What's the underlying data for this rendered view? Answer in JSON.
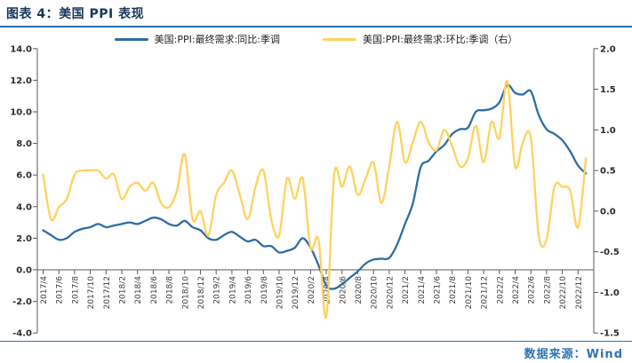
{
  "header": {
    "title": "图表 4：美国 PPI 表现"
  },
  "footer": {
    "source_label": "数据来源：Wind"
  },
  "colors": {
    "title_navy": "#17365D",
    "rule_blue": "#2C6BAE",
    "source_blue": "#2E74B5",
    "axis_gray": "#595959",
    "line_yoy_blue": "#2E6DA4",
    "line_mom_yellow": "#FFD25F"
  },
  "chart_data": {
    "type": "line",
    "title": "",
    "x": [
      "2017/4",
      "2017/5",
      "2017/6",
      "2017/7",
      "2017/8",
      "2017/9",
      "2017/10",
      "2017/11",
      "2017/12",
      "2018/1",
      "2018/2",
      "2018/3",
      "2018/4",
      "2018/5",
      "2018/6",
      "2018/7",
      "2018/8",
      "2018/9",
      "2018/10",
      "2018/11",
      "2018/12",
      "2019/1",
      "2019/2",
      "2019/3",
      "2019/4",
      "2019/5",
      "2019/6",
      "2019/7",
      "2019/8",
      "2019/9",
      "2019/10",
      "2019/11",
      "2019/12",
      "2020/1",
      "2020/2",
      "2020/3",
      "2020/4",
      "2020/5",
      "2020/6",
      "2020/7",
      "2020/8",
      "2020/9",
      "2020/10",
      "2020/11",
      "2020/12",
      "2021/1",
      "2021/2",
      "2021/3",
      "2021/4",
      "2021/5",
      "2021/6",
      "2021/7",
      "2021/8",
      "2021/9",
      "2021/10",
      "2021/11",
      "2021/12",
      "2022/1",
      "2022/2",
      "2022/3",
      "2022/4",
      "2022/5",
      "2022/6",
      "2022/7",
      "2022/8",
      "2022/9",
      "2022/10",
      "2022/11",
      "2022/12",
      "2023/1"
    ],
    "x_tick_labels": [
      "2017/4",
      "2017/6",
      "2017/8",
      "2017/10",
      "2017/12",
      "2018/2",
      "2018/4",
      "2018/6",
      "2018/8",
      "2018/10",
      "2018/12",
      "2019/2",
      "2019/4",
      "2019/6",
      "2019/8",
      "2019/10",
      "2019/12",
      "2020/2",
      "2020/4",
      "2020/6",
      "2020/8",
      "2020/10",
      "2020/12",
      "2021/2",
      "2021/4",
      "2021/6",
      "2021/8",
      "2021/10",
      "2021/12",
      "2022/2",
      "2022/4",
      "2022/6",
      "2022/8",
      "2022/10",
      "2022/12"
    ],
    "series": [
      {
        "name": "美国:PPI:最终需求:同比:季调",
        "axis": "left",
        "color": "#2E6DA4",
        "values": [
          2.5,
          2.2,
          1.9,
          2.0,
          2.4,
          2.6,
          2.7,
          2.9,
          2.7,
          2.8,
          2.9,
          3.0,
          2.9,
          3.1,
          3.3,
          3.2,
          2.9,
          2.8,
          3.1,
          2.7,
          2.5,
          2.0,
          1.9,
          2.2,
          2.4,
          2.1,
          1.8,
          1.9,
          1.5,
          1.5,
          1.1,
          1.2,
          1.4,
          2.0,
          1.4,
          0.3,
          -1.0,
          -1.2,
          -0.9,
          -0.5,
          -0.1,
          0.4,
          0.65,
          0.7,
          0.75,
          1.6,
          2.9,
          4.2,
          6.5,
          6.9,
          7.5,
          7.9,
          8.6,
          8.9,
          9.0,
          10.0,
          10.1,
          10.2,
          10.6,
          11.7,
          11.2,
          11.1,
          11.3,
          9.8,
          8.9,
          8.6,
          8.2,
          7.5,
          6.6,
          6.1
        ]
      },
      {
        "name": "美国:PPI:最终需求:环比:季调（右）",
        "axis": "right",
        "color": "#FFD25F",
        "values": [
          0.45,
          -0.1,
          0.05,
          0.15,
          0.45,
          0.5,
          0.5,
          0.5,
          0.4,
          0.45,
          0.15,
          0.3,
          0.35,
          0.25,
          0.35,
          0.1,
          0.05,
          0.25,
          0.7,
          -0.1,
          0.0,
          -0.3,
          0.2,
          0.35,
          0.5,
          0.2,
          -0.1,
          0.3,
          0.5,
          -0.1,
          -0.3,
          0.4,
          0.15,
          0.4,
          -0.45,
          -0.35,
          -1.3,
          0.45,
          0.3,
          0.55,
          0.2,
          0.4,
          0.6,
          0.1,
          0.55,
          1.1,
          0.6,
          0.85,
          1.1,
          0.85,
          0.75,
          1.0,
          0.8,
          0.55,
          0.65,
          1.05,
          0.6,
          1.1,
          0.9,
          1.6,
          0.55,
          0.85,
          0.9,
          -0.3,
          -0.35,
          0.3,
          0.3,
          0.25,
          -0.2,
          0.65
        ]
      }
    ],
    "left_axis": {
      "min": -4.0,
      "max": 14.0,
      "step": 2.0,
      "tick_labels": [
        "14.0",
        "12.0",
        "10.0",
        "8.0",
        "6.0",
        "4.0",
        "2.0",
        "0.0",
        "-2.0",
        "-4.0"
      ]
    },
    "right_axis": {
      "min": -1.5,
      "max": 2.0,
      "step": 0.5,
      "tick_labels": [
        "2.0",
        "1.5",
        "1.0",
        "0.5",
        "0.0",
        "-0.5",
        "-1.0",
        "-1.5"
      ]
    },
    "grid": false,
    "legend_position": "top-center"
  }
}
